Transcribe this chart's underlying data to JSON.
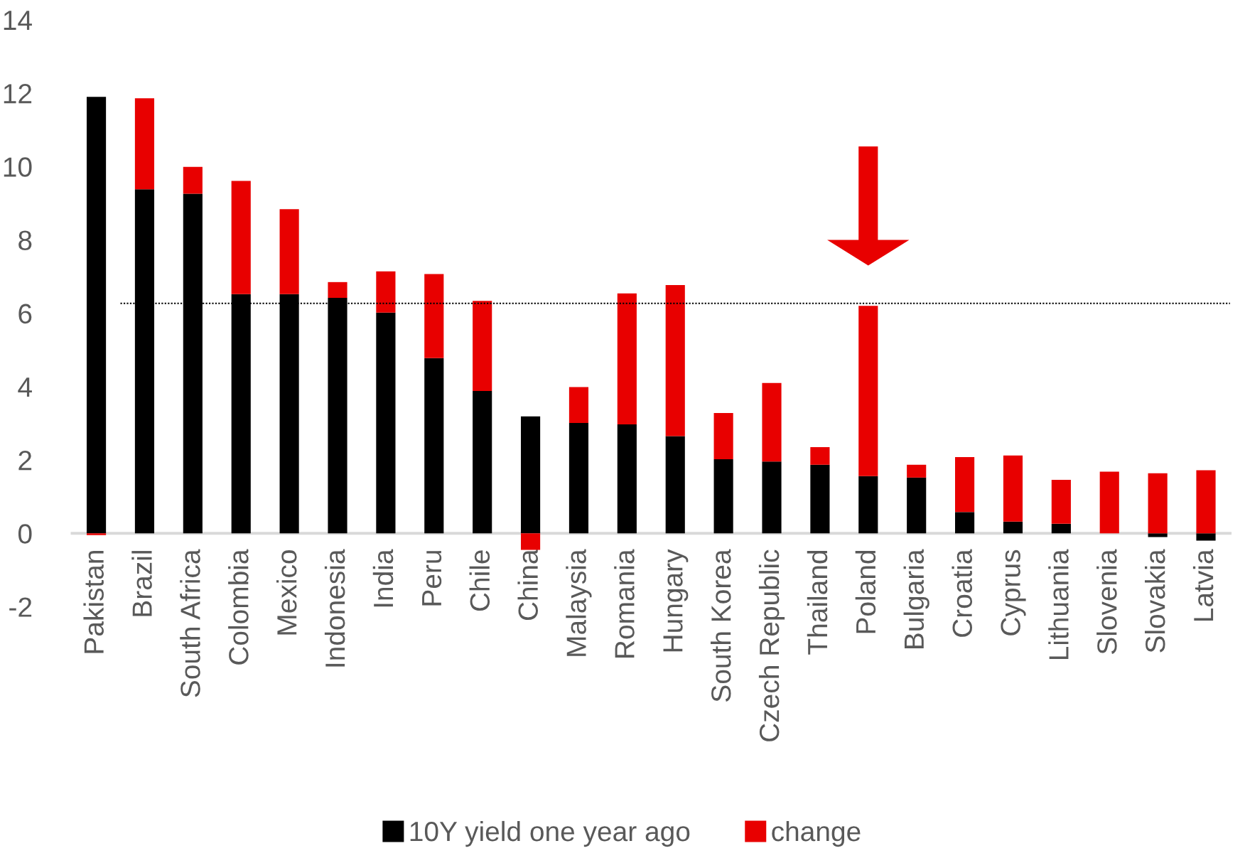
{
  "chart_data": {
    "type": "bar",
    "stacked": true,
    "categories": [
      "Pakistan",
      "Brazil",
      "South Africa",
      "Colombia",
      "Mexico",
      "Indonesia",
      "India",
      "Peru",
      "Chile",
      "China",
      "Malaysia",
      "Romania",
      "Hungary",
      "South Korea",
      "Czech Republic",
      "Thailand",
      "Poland",
      "Bulgaria",
      "Croatia",
      "Cyprus",
      "Lithuania",
      "Slovenia",
      "Slovakia",
      "Latvia"
    ],
    "series": [
      {
        "name": "10Y yield one year ago",
        "color": "#000000",
        "values": [
          11.9,
          9.38,
          9.26,
          6.52,
          6.52,
          6.42,
          6.02,
          4.78,
          3.88,
          3.19,
          3.01,
          2.97,
          2.65,
          2.02,
          1.96,
          1.87,
          1.56,
          1.52,
          0.58,
          0.32,
          0.26,
          0.0,
          -0.1,
          -0.2
        ]
      },
      {
        "name": "change",
        "color": "#e80000",
        "values": [
          -0.05,
          2.48,
          0.73,
          3.09,
          2.32,
          0.43,
          1.12,
          2.29,
          2.46,
          -0.45,
          0.98,
          3.57,
          4.12,
          1.26,
          2.14,
          0.48,
          4.64,
          0.35,
          1.5,
          1.8,
          1.2,
          1.68,
          1.64,
          1.72
        ]
      }
    ],
    "ylim": [
      -2,
      14
    ],
    "yticks": [
      -2,
      0,
      2,
      4,
      6,
      8,
      10,
      12,
      14
    ],
    "ref_lines": [
      {
        "axis": "y",
        "value": 6.27,
        "color": "#000000",
        "line_style": "dotted"
      }
    ],
    "grid": false,
    "legend": "bottom"
  }
}
